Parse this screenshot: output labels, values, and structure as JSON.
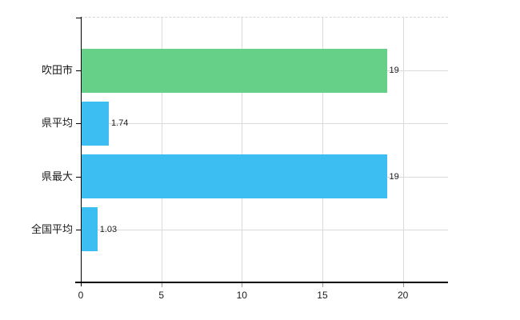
{
  "chart_data": {
    "type": "bar",
    "orientation": "horizontal",
    "title": "",
    "xlabel": "",
    "ylabel": "",
    "categories": [
      "吹田市",
      "県平均",
      "県最大",
      "全国平均"
    ],
    "values": [
      19,
      1.74,
      19,
      1.03
    ],
    "value_labels": [
      "19",
      "1.74",
      "19",
      "1.03"
    ],
    "bar_colors": [
      "#66CF88",
      "#3DBEF3",
      "#3DBEF3",
      "#3DBEF3"
    ],
    "xlim": [
      0,
      22.8
    ],
    "xticks": [
      0,
      5,
      10,
      15,
      20
    ],
    "xtick_labels": [
      "0",
      "5",
      "10",
      "15",
      "20"
    ],
    "grid": true,
    "legend": false,
    "colors": {
      "axis": "#000000",
      "gridline": "#DADADA",
      "top_border": "#D6D6D6",
      "text": "#1A1A1A",
      "background": "#FFFFFF"
    }
  }
}
